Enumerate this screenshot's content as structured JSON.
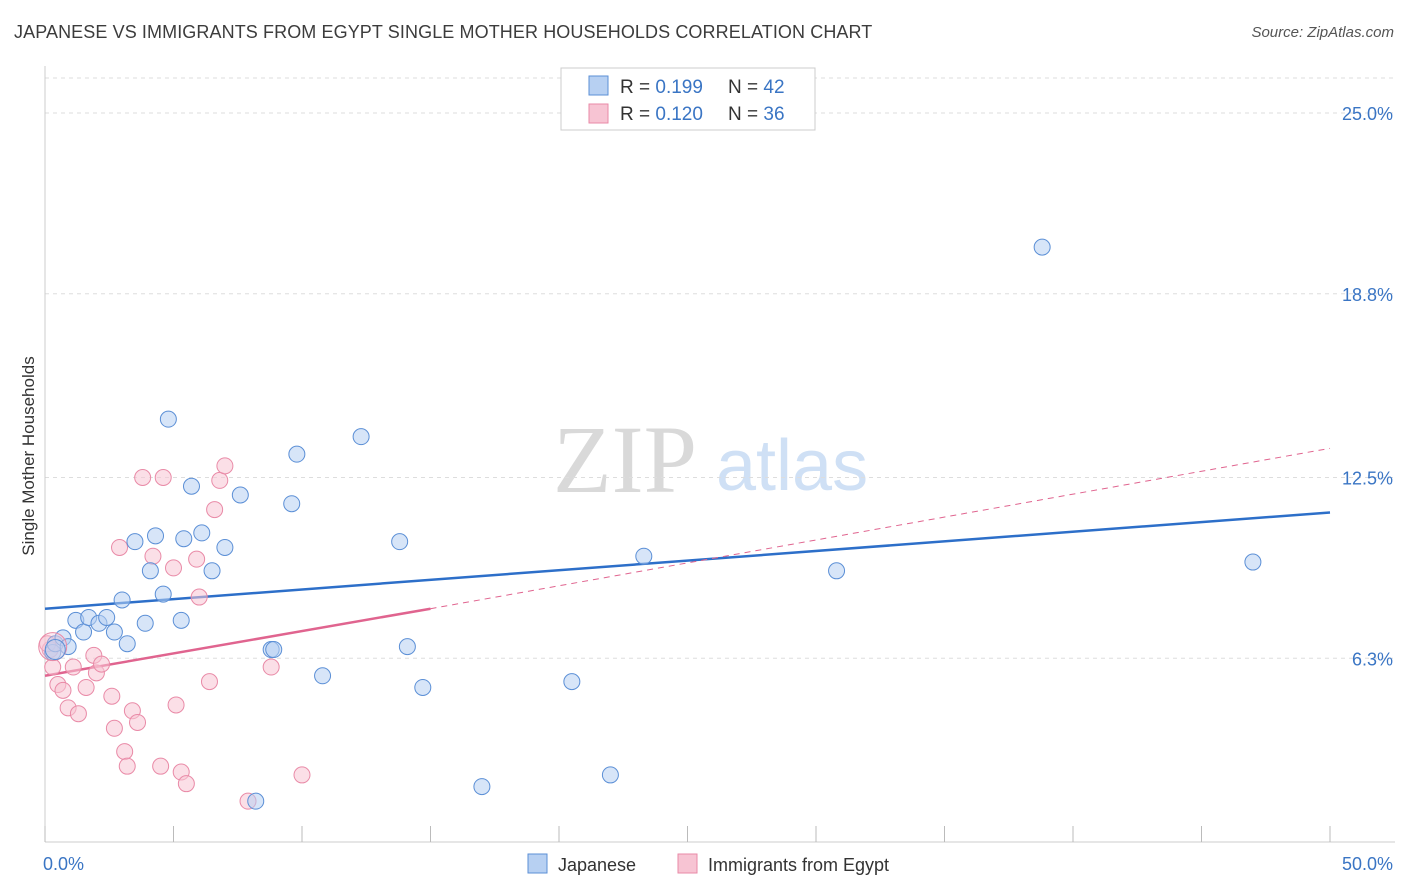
{
  "header": {
    "title": "JAPANESE VS IMMIGRANTS FROM EGYPT SINGLE MOTHER HOUSEHOLDS CORRELATION CHART",
    "source": "Source: ZipAtlas.com"
  },
  "watermark": {
    "zip": "ZIP",
    "atlas": "atlas"
  },
  "colors": {
    "blue": "#5b8fd6",
    "blue_fill": "#b7d0f2",
    "blue_line": "#2d6fc9",
    "pink": "#e98aa7",
    "pink_fill": "#f7c4d3",
    "pink_line": "#e0648f",
    "tick_text": "#3a75c4",
    "grid": "#dddddd"
  },
  "legend_top": [
    {
      "r_label": "R = ",
      "r_value": "0.199",
      "n_label": "N = ",
      "n_value": "42",
      "series": "Japanese"
    },
    {
      "r_label": "R = ",
      "r_value": "0.120",
      "n_label": "N = ",
      "n_value": "36",
      "series": "Immigrants from Egypt"
    }
  ],
  "legend_bottom": [
    "Japanese",
    "Immigrants from Egypt"
  ],
  "chart_data": {
    "type": "scatter",
    "title": "JAPANESE VS IMMIGRANTS FROM EGYPT SINGLE MOTHER HOUSEHOLDS CORRELATION CHART",
    "xlabel": "",
    "ylabel": "Single Mother Households",
    "xlim": [
      0,
      50
    ],
    "ylim": [
      0,
      26.2
    ],
    "x_ticks_labels": [
      "0.0%",
      "50.0%"
    ],
    "y_ticks": [
      6.3,
      12.5,
      18.8,
      25.0
    ],
    "y_ticks_labels": [
      "6.3%",
      "12.5%",
      "18.8%",
      "25.0%"
    ],
    "grid": true,
    "legend": "top-center",
    "series": [
      {
        "name": "Japanese",
        "color": "#5b8fd6",
        "points": [
          [
            0.3,
            6.5
          ],
          [
            0.4,
            6.8
          ],
          [
            0.7,
            7.0
          ],
          [
            0.9,
            6.7
          ],
          [
            1.2,
            7.6
          ],
          [
            1.5,
            7.2
          ],
          [
            1.7,
            7.7
          ],
          [
            2.1,
            7.5
          ],
          [
            2.4,
            7.7
          ],
          [
            2.7,
            7.2
          ],
          [
            3.0,
            8.3
          ],
          [
            3.2,
            6.8
          ],
          [
            3.5,
            10.3
          ],
          [
            3.9,
            7.5
          ],
          [
            4.1,
            9.3
          ],
          [
            4.3,
            10.5
          ],
          [
            4.6,
            8.5
          ],
          [
            4.8,
            14.5
          ],
          [
            5.3,
            7.6
          ],
          [
            5.4,
            10.4
          ],
          [
            5.7,
            12.2
          ],
          [
            6.1,
            10.6
          ],
          [
            6.5,
            9.3
          ],
          [
            7.0,
            10.1
          ],
          [
            7.6,
            11.9
          ],
          [
            8.2,
            1.4
          ],
          [
            8.8,
            6.6
          ],
          [
            8.9,
            6.6
          ],
          [
            9.6,
            11.6
          ],
          [
            9.8,
            13.3
          ],
          [
            10.8,
            5.7
          ],
          [
            12.3,
            13.9
          ],
          [
            13.8,
            10.3
          ],
          [
            14.1,
            6.7
          ],
          [
            14.7,
            5.3
          ],
          [
            17.0,
            1.9
          ],
          [
            20.5,
            5.5
          ],
          [
            22.0,
            2.3
          ],
          [
            23.3,
            9.8
          ],
          [
            30.8,
            9.3
          ],
          [
            38.8,
            20.4
          ],
          [
            47.0,
            9.6
          ]
        ],
        "trend": {
          "x": [
            0,
            50
          ],
          "y": [
            8.0,
            11.3
          ]
        }
      },
      {
        "name": "Immigrants from Egypt",
        "color": "#e98aa7",
        "points": [
          [
            0.2,
            6.6
          ],
          [
            0.3,
            6.0
          ],
          [
            0.5,
            5.4
          ],
          [
            0.7,
            5.2
          ],
          [
            0.9,
            4.6
          ],
          [
            1.1,
            6.0
          ],
          [
            1.3,
            4.4
          ],
          [
            1.6,
            5.3
          ],
          [
            1.9,
            6.4
          ],
          [
            2.0,
            5.8
          ],
          [
            2.2,
            6.1
          ],
          [
            2.6,
            5.0
          ],
          [
            2.7,
            3.9
          ],
          [
            2.9,
            10.1
          ],
          [
            3.1,
            3.1
          ],
          [
            3.2,
            2.6
          ],
          [
            3.4,
            4.5
          ],
          [
            3.6,
            4.1
          ],
          [
            3.8,
            12.5
          ],
          [
            4.2,
            9.8
          ],
          [
            4.5,
            2.6
          ],
          [
            4.6,
            12.5
          ],
          [
            5.0,
            9.4
          ],
          [
            5.1,
            4.7
          ],
          [
            5.3,
            2.4
          ],
          [
            5.5,
            2.0
          ],
          [
            5.9,
            9.7
          ],
          [
            6.0,
            8.4
          ],
          [
            6.4,
            5.5
          ],
          [
            6.6,
            11.4
          ],
          [
            6.8,
            12.4
          ],
          [
            7.0,
            12.9
          ],
          [
            7.9,
            1.4
          ],
          [
            8.8,
            6.0
          ],
          [
            10.0,
            2.3
          ],
          [
            0.1,
            6.8
          ]
        ],
        "trend_solid": {
          "x": [
            0,
            15
          ],
          "y": [
            5.7,
            8.0
          ]
        },
        "trend_dashed": {
          "x": [
            15,
            50
          ],
          "y": [
            8.0,
            13.5
          ]
        }
      }
    ]
  }
}
